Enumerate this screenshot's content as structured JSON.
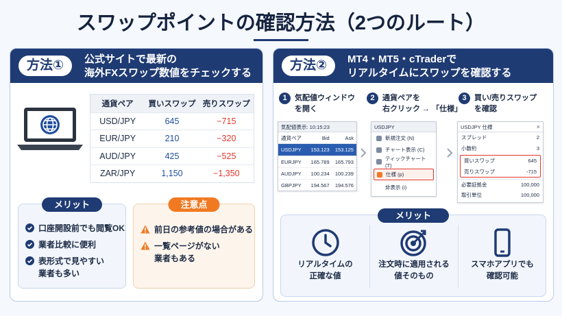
{
  "title": "スワップポイントの確認方法（2つのルート）",
  "method1": {
    "badge": "方法①",
    "heading": [
      "公式サイトで最新の",
      "海外FXスワップ数値をチェックする"
    ],
    "table": {
      "header": [
        "通貨ペア",
        "買いスワップ",
        "売りスワップ"
      ],
      "rows": [
        [
          "USD/JPY",
          "645",
          "−715"
        ],
        [
          "EUR/JPY",
          "210",
          "−320"
        ],
        [
          "AUD/JPY",
          "425",
          "−525"
        ],
        [
          "ZAR/JPY",
          "1,150",
          "−1,350"
        ]
      ]
    },
    "merits": {
      "label": "メリット",
      "items": [
        [
          "口座開設前でも閲覧OK"
        ],
        [
          "業者比較に便利"
        ],
        [
          "表形式で見やすい",
          "業者も多い"
        ]
      ]
    },
    "cautions": {
      "label": "注意点",
      "items": [
        [
          "前日の参考値の場合がある"
        ],
        [
          "一覧ページがない",
          "業者もある"
        ]
      ]
    }
  },
  "method2": {
    "badge": "方法②",
    "heading": [
      "MT4・MT5・cTraderで",
      "リアルタイムにスワップを確認する"
    ],
    "steps": [
      {
        "number": "1",
        "text": [
          "気配値ウィンドウ",
          "を開く"
        ]
      },
      {
        "number": "2",
        "text": [
          "通貨ペアを",
          "右クリック → 「仕様」"
        ]
      },
      {
        "number": "3",
        "text": [
          "買い/売りスワップ",
          "を確認"
        ]
      }
    ],
    "quote_window": {
      "title": "気配値表示: 10:15:23",
      "header": [
        "通貨ペア",
        "Bid",
        "Ask"
      ],
      "rows": [
        [
          "USDJPY",
          "153.123",
          "153.125"
        ],
        [
          "EURJPY",
          "165.789",
          "165.793"
        ],
        [
          "AUDJPY",
          "100.234",
          "100.239"
        ],
        [
          "GBPJPY",
          "194.567",
          "194.576"
        ]
      ]
    },
    "context_menu": {
      "title": "USDJPY",
      "items": [
        "新規注文 (N)",
        "チャート表示 (C)",
        "ティックチャート (T)",
        "仕様 (p)",
        "非表示 (i)"
      ]
    },
    "spec_window": {
      "title": "USDJPY 仕様",
      "close": "×",
      "rows": [
        [
          "スプレッド",
          "2"
        ],
        [
          "小数桁",
          "3"
        ],
        [
          "買いスワップ",
          "645"
        ],
        [
          "売りスワップ",
          "-715"
        ],
        [
          "必要証拠金",
          "100,000"
        ],
        [
          "取引単位",
          "100,000"
        ]
      ]
    },
    "merits": {
      "label": "メリット",
      "items": [
        [
          "リアルタイムの",
          "正確な値"
        ],
        [
          "注文時に適用される",
          "値そのもの"
        ],
        [
          "スマホアプリでも",
          "確認可能"
        ]
      ]
    }
  }
}
